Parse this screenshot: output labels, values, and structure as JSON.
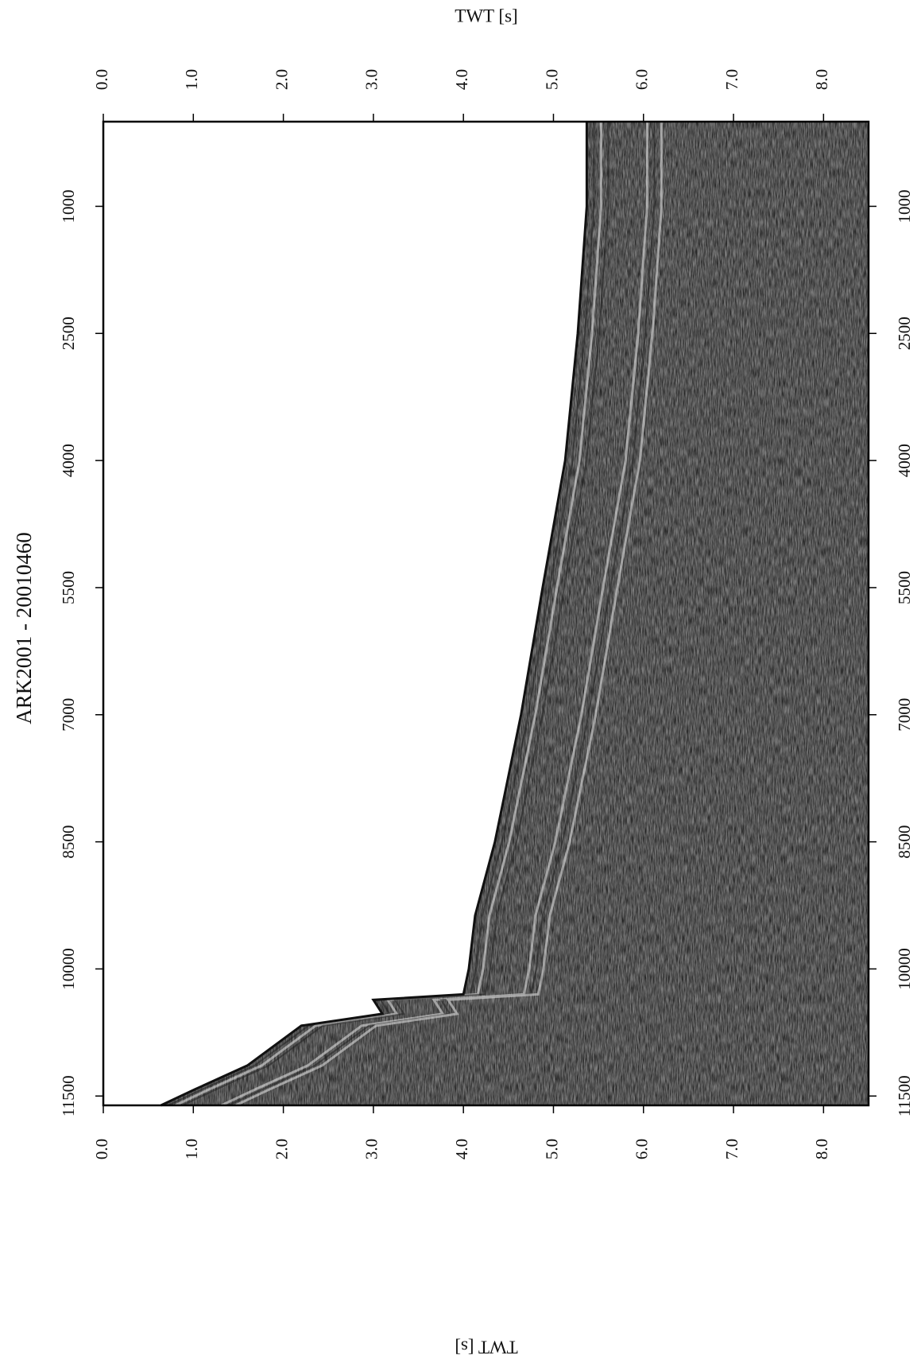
{
  "chart_data": {
    "type": "seismic",
    "title": "ARK2001 - 20010460",
    "ylabel": "TWT [s]",
    "xlim": [
      1,
      11610
    ],
    "xticks": [
      1000,
      2500,
      4000,
      5500,
      7000,
      8500,
      10000,
      11500
    ],
    "ylim": [
      0,
      8.5
    ],
    "yticks": [
      {
        "value": 0,
        "label": "0.0"
      },
      {
        "value": 1,
        "label": "1.0"
      },
      {
        "value": 2,
        "label": "2.0"
      },
      {
        "value": 3,
        "label": "3.0"
      },
      {
        "value": 4,
        "label": "4.0"
      },
      {
        "value": 5,
        "label": "5.0"
      },
      {
        "value": 6,
        "label": "6.0"
      },
      {
        "value": 7,
        "label": "7.0"
      },
      {
        "value": 8,
        "label": "8.0"
      }
    ],
    "x": [
      1,
      1000,
      2500,
      4000,
      5500,
      7000,
      8500,
      9370,
      10000,
      10300,
      10365,
      10530,
      10670,
      11140,
      11420,
      11610
    ],
    "values": [
      5.37,
      5.37,
      5.27,
      5.13,
      4.88,
      4.64,
      4.35,
      4.13,
      4.06,
      4.0,
      3.0,
      3.1,
      2.2,
      1.6,
      1.02,
      0.64
    ],
    "color": "#808080"
  }
}
